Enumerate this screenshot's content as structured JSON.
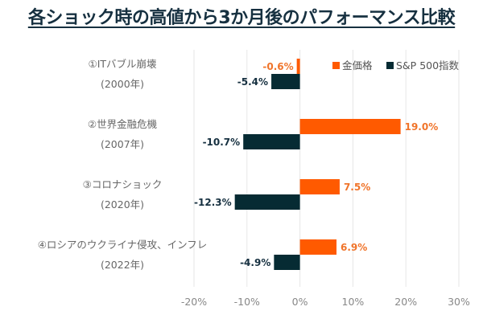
{
  "title": "各ショック時の高値から3か月後のパフォーマンス比較",
  "chart_data": {
    "type": "bar",
    "orientation": "horizontal",
    "title": "各ショック時の高値から3か月後のパフォーマンス比較",
    "categories": [
      {
        "line1": "①ITバブル崩壊",
        "line2": "(2000年)"
      },
      {
        "line1": "②世界金融危機",
        "line2": "(2007年)"
      },
      {
        "line1": "③コロナショック",
        "line2": "(2020年)"
      },
      {
        "line1": "④ロシアのウクライナ侵攻、インフレ",
        "line2": "(2022年)"
      }
    ],
    "series": [
      {
        "name": "金価格",
        "color": "#FF5A00",
        "label_color": "#F0742A",
        "values": [
          -0.6,
          19.0,
          7.5,
          6.9
        ],
        "labels": [
          "-0.6%",
          "19.0%",
          "7.5%",
          "6.9%"
        ]
      },
      {
        "name": "S&P 500指数",
        "color": "#062B33",
        "label_color": "#163040",
        "values": [
          -5.4,
          -10.7,
          -12.3,
          -4.9
        ],
        "labels": [
          "-5.4%",
          "-10.7%",
          "-12.3%",
          "-4.9%"
        ]
      }
    ],
    "xlim": [
      -20,
      30
    ],
    "xticks": [
      -20,
      -10,
      0,
      10,
      20,
      30
    ],
    "xtick_labels": [
      "-20%",
      "-10%",
      "0%",
      "10%",
      "20%",
      "30%"
    ],
    "xlabel": "",
    "ylabel": "",
    "grid": "vertical",
    "legend_position": "top-right"
  }
}
